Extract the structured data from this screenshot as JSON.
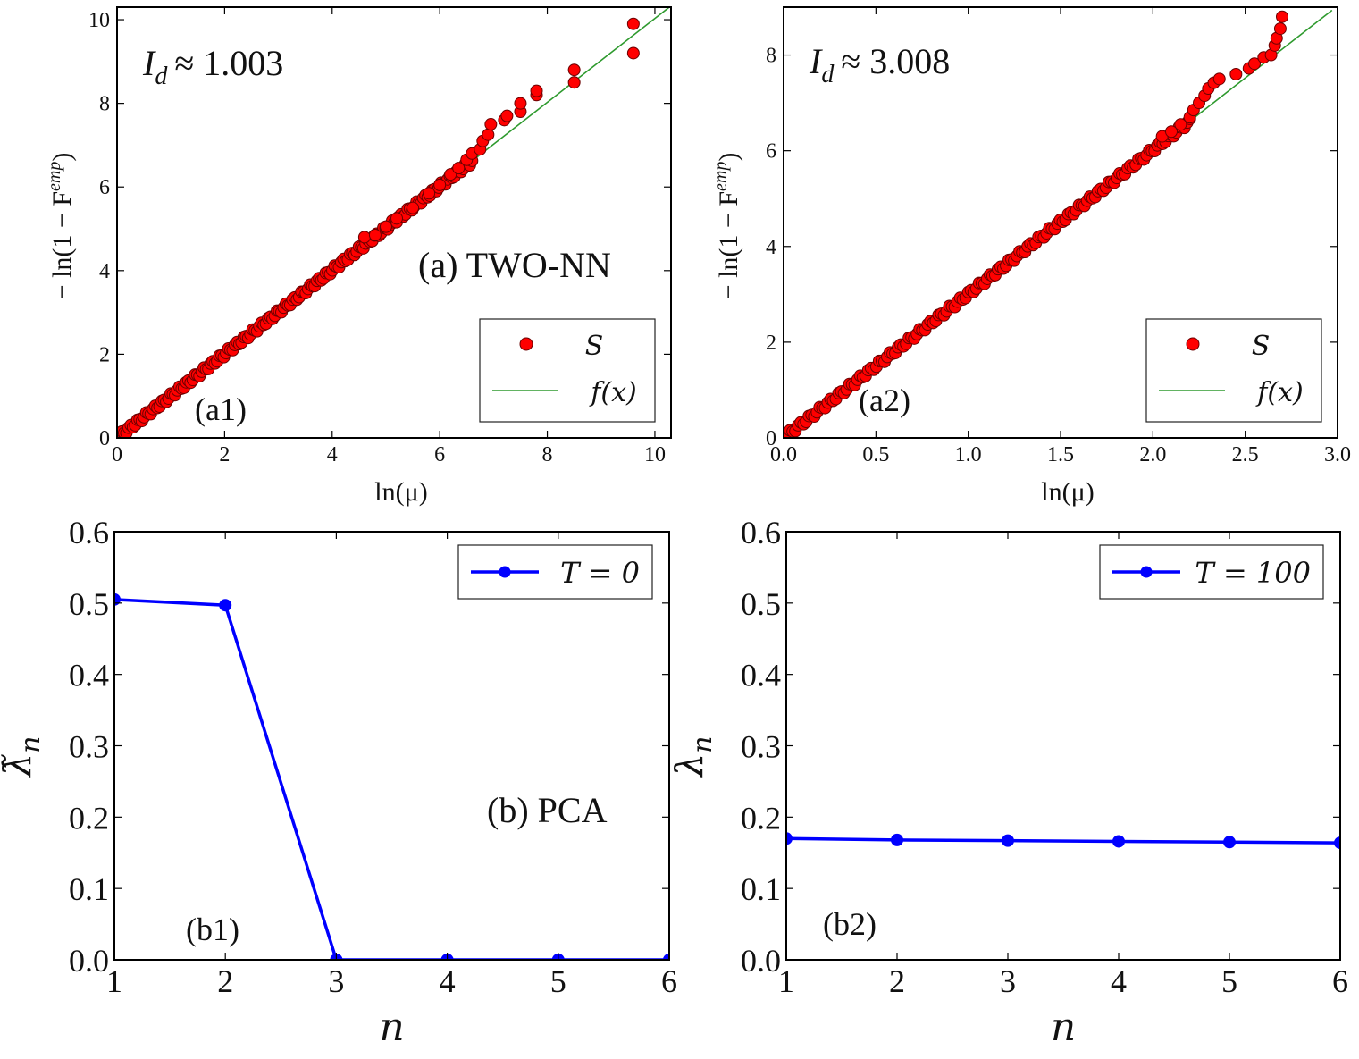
{
  "chart_data": [
    {
      "id": "a1",
      "type": "scatter",
      "panel_label": "(a1)",
      "title_annotation": "(a) TWO-NN",
      "estimate_text": "I_d ≈ 1.003",
      "estimate_symbol": "I",
      "estimate_subscript": "d",
      "estimate_value": "≈ 1.003",
      "xlabel": "ln(μ)",
      "ylabel": "− ln(1 − F^emp)",
      "ylabel_main": "− ln(1 − F",
      "ylabel_sup": "emp",
      "ylabel_close": ")",
      "xlim": [
        0,
        10.3
      ],
      "ylim": [
        0,
        10.3
      ],
      "xticks": [
        0,
        2,
        4,
        6,
        8,
        10
      ],
      "xtick_labels": [
        "0",
        "2",
        "4",
        "6",
        "8",
        "10"
      ],
      "yticks": [
        0,
        2,
        4,
        6,
        8,
        10
      ],
      "ytick_labels": [
        "0",
        "2",
        "4",
        "6",
        "8",
        "10"
      ],
      "legend": {
        "location": "lower-right",
        "entries": [
          "S",
          "f(x)"
        ]
      },
      "fit_line": {
        "slope": 1.003,
        "intercept": 0,
        "x": [
          0,
          10.3
        ]
      },
      "scatter_dense": {
        "x_start": 0.05,
        "x_end": 6.6,
        "count": 160
      },
      "scatter_points": [
        {
          "x": 4.6,
          "y": 4.8
        },
        {
          "x": 4.8,
          "y": 4.85
        },
        {
          "x": 5.0,
          "y": 5.05
        },
        {
          "x": 5.2,
          "y": 5.25
        },
        {
          "x": 5.5,
          "y": 5.5
        },
        {
          "x": 5.8,
          "y": 5.85
        },
        {
          "x": 6.0,
          "y": 6.05
        },
        {
          "x": 6.2,
          "y": 6.3
        },
        {
          "x": 6.35,
          "y": 6.45
        },
        {
          "x": 6.5,
          "y": 6.65
        },
        {
          "x": 6.6,
          "y": 6.8
        },
        {
          "x": 6.75,
          "y": 6.9
        },
        {
          "x": 6.8,
          "y": 7.1
        },
        {
          "x": 6.9,
          "y": 7.25
        },
        {
          "x": 6.95,
          "y": 7.5
        },
        {
          "x": 7.2,
          "y": 7.6
        },
        {
          "x": 7.25,
          "y": 7.7
        },
        {
          "x": 7.5,
          "y": 7.8
        },
        {
          "x": 7.5,
          "y": 8.0
        },
        {
          "x": 7.8,
          "y": 8.2
        },
        {
          "x": 7.8,
          "y": 8.3
        },
        {
          "x": 8.5,
          "y": 8.5
        },
        {
          "x": 8.5,
          "y": 8.8
        },
        {
          "x": 9.6,
          "y": 9.2
        },
        {
          "x": 9.6,
          "y": 9.9
        }
      ]
    },
    {
      "id": "a2",
      "type": "scatter",
      "panel_label": "(a2)",
      "estimate_text": "I_d ≈ 3.008",
      "estimate_symbol": "I",
      "estimate_subscript": "d",
      "estimate_value": "≈ 3.008",
      "xlabel": "ln(μ)",
      "ylabel": "− ln(1 − F^emp)",
      "ylabel_main": "− ln(1 − F",
      "ylabel_sup": "emp",
      "ylabel_close": ")",
      "xlim": [
        0,
        3.0
      ],
      "ylim": [
        0,
        9.0
      ],
      "xticks": [
        0,
        0.5,
        1.0,
        1.5,
        2.0,
        2.5,
        3.0
      ],
      "xtick_labels": [
        "0.0",
        "0.5",
        "1.0",
        "1.5",
        "2.0",
        "2.5",
        "3.0"
      ],
      "yticks": [
        0,
        2,
        4,
        6,
        8
      ],
      "ytick_labels": [
        "0",
        "2",
        "4",
        "6",
        "8"
      ],
      "legend": {
        "location": "lower-right",
        "entries": [
          "S",
          "f(x)"
        ]
      },
      "fit_line": {
        "slope": 3.008,
        "intercept": 0,
        "x": [
          0,
          2.97
        ]
      },
      "scatter_dense": {
        "x_start": 0.02,
        "x_end": 2.2,
        "count": 150
      },
      "scatter_points": [
        {
          "x": 2.05,
          "y": 6.3
        },
        {
          "x": 2.1,
          "y": 6.4
        },
        {
          "x": 2.15,
          "y": 6.55
        },
        {
          "x": 2.2,
          "y": 6.7
        },
        {
          "x": 2.22,
          "y": 6.85
        },
        {
          "x": 2.25,
          "y": 7.0
        },
        {
          "x": 2.28,
          "y": 7.15
        },
        {
          "x": 2.3,
          "y": 7.3
        },
        {
          "x": 2.33,
          "y": 7.42
        },
        {
          "x": 2.36,
          "y": 7.5
        },
        {
          "x": 2.45,
          "y": 7.6
        },
        {
          "x": 2.52,
          "y": 7.72
        },
        {
          "x": 2.55,
          "y": 7.82
        },
        {
          "x": 2.6,
          "y": 7.95
        },
        {
          "x": 2.64,
          "y": 8.0
        },
        {
          "x": 2.66,
          "y": 8.2
        },
        {
          "x": 2.67,
          "y": 8.35
        },
        {
          "x": 2.69,
          "y": 8.55
        },
        {
          "x": 2.7,
          "y": 8.8
        }
      ]
    },
    {
      "id": "b1",
      "type": "line",
      "panel_label": "(b1)",
      "title_annotation": "(b) PCA",
      "xlabel": "n",
      "ylabel": "λ̃ₙ",
      "ylabel_symbol": "λ̃",
      "ylabel_sub": "n",
      "xlim": [
        1,
        6
      ],
      "ylim": [
        0,
        0.6
      ],
      "xticks": [
        1,
        2,
        3,
        4,
        5,
        6
      ],
      "xtick_labels": [
        "1",
        "2",
        "3",
        "4",
        "5",
        "6"
      ],
      "yticks": [
        0,
        0.1,
        0.2,
        0.3,
        0.4,
        0.5,
        0.6
      ],
      "ytick_labels": [
        "0.0",
        "0.1",
        "0.2",
        "0.3",
        "0.4",
        "0.5",
        "0.6"
      ],
      "legend": {
        "location": "top-right",
        "entries": [
          "T = 0"
        ]
      },
      "series": [
        {
          "name": "T = 0",
          "x": [
            1,
            2,
            3,
            4,
            5,
            6
          ],
          "values": [
            0.505,
            0.497,
            0.0,
            0.0,
            0.0,
            0.0
          ]
        }
      ]
    },
    {
      "id": "b2",
      "type": "line",
      "panel_label": "(b2)",
      "xlabel": "n",
      "ylabel": "λₙ",
      "ylabel_symbol": "λ",
      "ylabel_sub": "n",
      "xlim": [
        1,
        6
      ],
      "ylim": [
        0,
        0.6
      ],
      "xticks": [
        1,
        2,
        3,
        4,
        5,
        6
      ],
      "xtick_labels": [
        "1",
        "2",
        "3",
        "4",
        "5",
        "6"
      ],
      "yticks": [
        0,
        0.1,
        0.2,
        0.3,
        0.4,
        0.5,
        0.6
      ],
      "ytick_labels": [
        "0.0",
        "0.1",
        "0.2",
        "0.3",
        "0.4",
        "0.5",
        "0.6"
      ],
      "legend": {
        "location": "top-right",
        "entries": [
          "T = 100"
        ]
      },
      "series": [
        {
          "name": "T = 100",
          "x": [
            1,
            2,
            3,
            4,
            5,
            6
          ],
          "values": [
            0.17,
            0.168,
            0.167,
            0.166,
            0.165,
            0.164
          ]
        }
      ]
    }
  ],
  "colors": {
    "scatter_fill": "#ff0000",
    "scatter_stroke": "#6b0000",
    "fit_line": "#2e9a2e",
    "series_line": "#0000ff",
    "axes": "#000000"
  }
}
